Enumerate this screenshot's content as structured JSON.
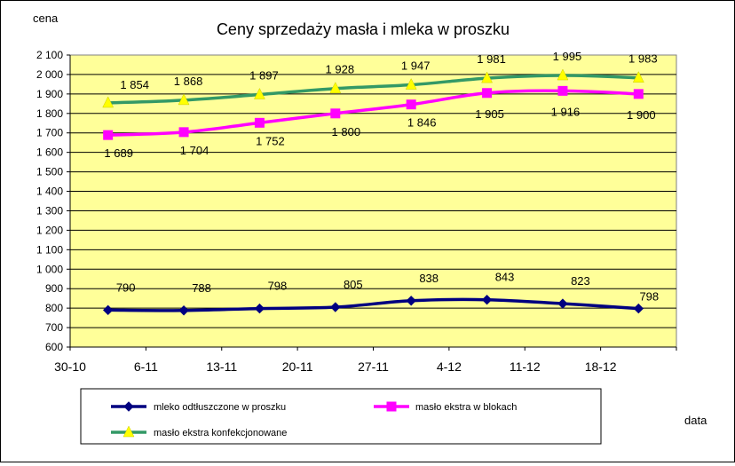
{
  "chart_data": {
    "type": "line",
    "title": "Ceny sprzedaży masła i mleka w proszku",
    "ylabel": "cena",
    "xlabel": "data",
    "categories": [
      "30-10",
      "6-11",
      "13-11",
      "20-11",
      "27-11",
      "4-12",
      "11-12",
      "18-12"
    ],
    "ylim": [
      600,
      2100
    ],
    "ytick_step": 100,
    "ytick_labels": [
      "600",
      "700",
      "800",
      "900",
      "1 000",
      "1 100",
      "1 200",
      "1 300",
      "1 400",
      "1 500",
      "1 600",
      "1 700",
      "1 800",
      "1 900",
      "2 000",
      "2 100"
    ],
    "grid": true,
    "plot_background": "#ffff99",
    "legend_position": "bottom",
    "series": [
      {
        "name": "mleko odtłuszczone w proszku",
        "values": [
          790,
          788,
          798,
          805,
          838,
          843,
          823,
          798
        ],
        "labels": [
          "790",
          "788",
          "798",
          "805",
          "838",
          "843",
          "823",
          "798"
        ],
        "line_color": "#000080",
        "marker": "diamond",
        "marker_color": "#000080"
      },
      {
        "name": "masło ekstra w blokach",
        "values": [
          1689,
          1704,
          1752,
          1800,
          1846,
          1905,
          1916,
          1900
        ],
        "labels": [
          "1 689",
          "1 704",
          "1 752",
          "1 800",
          "1 846",
          "1 905",
          "1 916",
          "1 900"
        ],
        "line_color": "#ff00ff",
        "marker": "square",
        "marker_color": "#ff00ff"
      },
      {
        "name": "masło ekstra konfekcjonowane",
        "values": [
          1854,
          1868,
          1897,
          1928,
          1947,
          1981,
          1995,
          1983
        ],
        "labels": [
          "1 854",
          "1 868",
          "1 897",
          "1 928",
          "1 947",
          "1 981",
          "1 995",
          "1 983"
        ],
        "line_color": "#339966",
        "marker": "triangle",
        "marker_color": "#ffff00"
      }
    ]
  }
}
